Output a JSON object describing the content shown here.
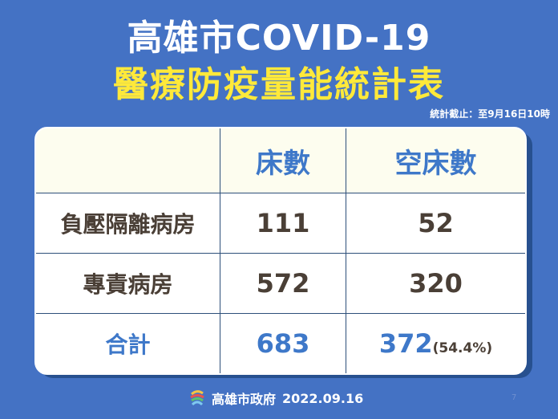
{
  "header": {
    "title_line1": "高雄市COVID-19",
    "title_line2": "醫療防疫量能統計表",
    "as_of": "統計截止：至9月16日10時"
  },
  "table": {
    "columns": [
      "",
      "床數",
      "空床數"
    ],
    "rows": [
      {
        "label": "負壓隔離病房",
        "beds": "111",
        "empty_beds": "52"
      },
      {
        "label": "專責病房",
        "beds": "572",
        "empty_beds": "320"
      }
    ],
    "total": {
      "label": "合計",
      "beds": "683",
      "empty_beds": "372",
      "empty_pct": "(54.4%)"
    }
  },
  "footer": {
    "org": "高雄市政府",
    "date": "2022.09.16",
    "logo_icon": "kaohsiung-city-logo",
    "page_number": "7"
  },
  "colors": {
    "background": "#4472c4",
    "title": "#ffffff",
    "subtitle": "#ffe93a",
    "accent_blue": "#3e78c9",
    "text_brown": "#4a3f36",
    "header_row": "#fdfdef"
  }
}
